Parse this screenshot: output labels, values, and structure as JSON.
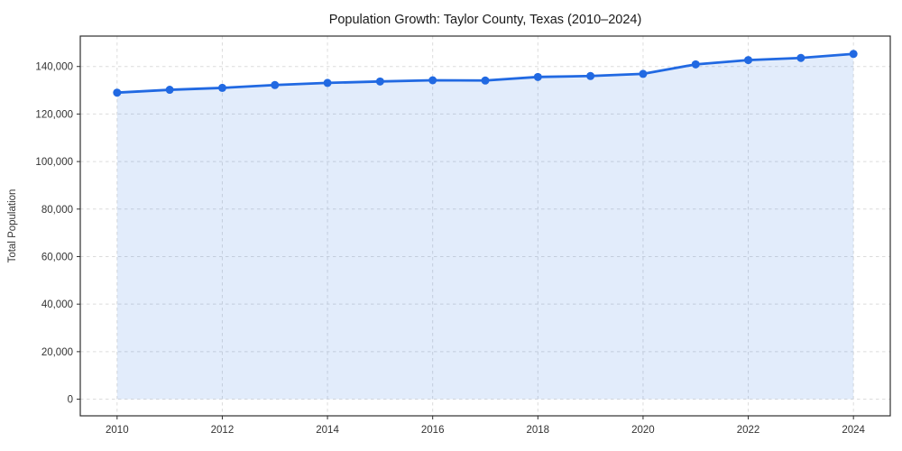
{
  "chart_data": {
    "type": "line",
    "title": "Population Growth: Taylor County, Texas (2010–2024)",
    "xlabel": "",
    "ylabel": "Total Population",
    "x": [
      2010,
      2011,
      2012,
      2013,
      2014,
      2015,
      2016,
      2017,
      2018,
      2019,
      2020,
      2021,
      2022,
      2023,
      2024
    ],
    "series": [
      {
        "name": "Total Population",
        "values": [
          129000,
          130200,
          131000,
          132200,
          133100,
          133700,
          134200,
          134100,
          135600,
          136000,
          136900,
          140900,
          142700,
          143600,
          145300
        ]
      }
    ],
    "area_fill": true,
    "fill_baseline": 0,
    "xlim": [
      2009.3,
      2024.7
    ],
    "ylim": [
      -7000,
      152800
    ],
    "xticks": [
      2010,
      2012,
      2014,
      2016,
      2018,
      2020,
      2022,
      2024
    ],
    "xtick_labels": [
      "2010",
      "2012",
      "2014",
      "2016",
      "2018",
      "2020",
      "2022",
      "2024"
    ],
    "yticks": [
      0,
      20000,
      40000,
      60000,
      80000,
      100000,
      120000,
      140000
    ],
    "ytick_labels": [
      "0",
      "20,000",
      "40,000",
      "60,000",
      "80,000",
      "100,000",
      "120,000",
      "140,000"
    ],
    "grid": true,
    "grid_style": "dashed",
    "legend": "none",
    "marker": "circle",
    "colors": {
      "line": "#2169e2",
      "marker": "#2169e2",
      "fill": "rgba(33,105,226,0.13)",
      "grid": "#dcdcdc",
      "spine": "#2e2e2e",
      "tick": "#2e2e2e",
      "title_text": "#1a1a1a",
      "tick_text": "#333333",
      "background": "#ffffff"
    }
  }
}
